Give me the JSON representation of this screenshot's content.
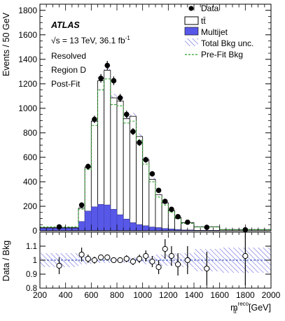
{
  "chart_data": [
    {
      "type": "bar",
      "panel": "main",
      "experiment": "ATLAS",
      "energy_text": "√s = 13 TeV, 36.1 fb",
      "energy_sup": "-1",
      "annotations": [
        "Resolved",
        "Region D",
        "Post-Fit"
      ],
      "ylabel": "Events / 50 GeV",
      "xlim": [
        200,
        2000
      ],
      "ylim": [
        0,
        1850
      ],
      "y_ticks": [
        0,
        200,
        400,
        600,
        800,
        1000,
        1200,
        1400,
        1600,
        1800
      ],
      "legend": {
        "placement": "top-right",
        "entries": [
          {
            "key": "data",
            "label": "Data",
            "style": "marker"
          },
          {
            "key": "ttbar",
            "label": "tt̄",
            "style": "white-box"
          },
          {
            "key": "multijet",
            "label": "Multijet",
            "style": "fill",
            "color": "#5858e8"
          },
          {
            "key": "unc",
            "label": "Total Bkg unc.",
            "style": "hatch"
          },
          {
            "key": "prefit",
            "label": "Pre-Fit Bkg",
            "style": "dashed-line",
            "color": "#2ca02c"
          }
        ]
      },
      "bin_edges": [
        200,
        500,
        550,
        600,
        650,
        700,
        750,
        800,
        850,
        900,
        950,
        1000,
        1050,
        1100,
        1150,
        1200,
        1250,
        1300,
        1400,
        1600,
        2000
      ],
      "series": [
        {
          "name": "Multijet",
          "values": [
            20,
            75,
            160,
            195,
            215,
            210,
            175,
            130,
            95,
            65,
            50,
            40,
            30,
            25,
            18,
            14,
            10,
            6,
            3,
            1
          ]
        },
        {
          "name": "tt̄",
          "values": [
            5,
            110,
            360,
            700,
            1010,
            1100,
            910,
            930,
            820,
            870,
            720,
            540,
            390,
            270,
            210,
            150,
            100,
            60,
            30,
            9
          ]
        },
        {
          "name": "Pre-Fit Bkg",
          "values": [
            32,
            175,
            500,
            860,
            1150,
            1240,
            1030,
            1020,
            880,
            895,
            740,
            545,
            400,
            275,
            210,
            150,
            100,
            60,
            31,
            9
          ]
        }
      ],
      "data_points": [
        {
          "x": 350,
          "y": 32
        },
        {
          "x": 525,
          "y": 210
        },
        {
          "x": 575,
          "y": 525
        },
        {
          "x": 625,
          "y": 910
        },
        {
          "x": 675,
          "y": 1245
        },
        {
          "x": 725,
          "y": 1350
        },
        {
          "x": 775,
          "y": 1225
        },
        {
          "x": 825,
          "y": 1085
        },
        {
          "x": 875,
          "y": 950
        },
        {
          "x": 925,
          "y": 810
        },
        {
          "x": 975,
          "y": 720
        },
        {
          "x": 1025,
          "y": 580
        },
        {
          "x": 1075,
          "y": 465
        },
        {
          "x": 1125,
          "y": 330
        },
        {
          "x": 1175,
          "y": 240
        },
        {
          "x": 1225,
          "y": 175
        },
        {
          "x": 1275,
          "y": 115
        },
        {
          "x": 1350,
          "y": 70
        },
        {
          "x": 1500,
          "y": 28
        },
        {
          "x": 1800,
          "y": 8
        }
      ]
    },
    {
      "type": "scatter",
      "panel": "ratio",
      "ylabel": "Data / Bkg",
      "xlabel": "m",
      "xlabel_sup": "reco",
      "xlabel_sub": "tt̄",
      "xlabel_unit": " [GeV]",
      "xlim": [
        200,
        2000
      ],
      "ylim": [
        0.8,
        1.2
      ],
      "y_ticks": [
        0.8,
        0.9,
        1,
        1.1
      ],
      "x_ticks": [
        200,
        400,
        600,
        800,
        1000,
        1200,
        1400,
        1600,
        1800,
        2000
      ],
      "reference_line": 1,
      "unc_band": [
        0.05,
        0.03,
        0.03,
        0.02,
        0.02,
        0.02,
        0.02,
        0.02,
        0.02,
        0.02,
        0.02,
        0.03,
        0.03,
        0.04,
        0.04,
        0.04,
        0.05,
        0.05,
        0.08,
        0.09
      ],
      "points": [
        {
          "x": 350,
          "y": 0.96,
          "err": 0.06
        },
        {
          "x": 525,
          "y": 1.04,
          "err": 0.05
        },
        {
          "x": 575,
          "y": 1.01,
          "err": 0.03
        },
        {
          "x": 625,
          "y": 1.0,
          "err": 0.025
        },
        {
          "x": 675,
          "y": 1.02,
          "err": 0.02
        },
        {
          "x": 725,
          "y": 1.02,
          "err": 0.02
        },
        {
          "x": 775,
          "y": 1.0,
          "err": 0.02
        },
        {
          "x": 825,
          "y": 1.0,
          "err": 0.02
        },
        {
          "x": 875,
          "y": 1.01,
          "err": 0.025
        },
        {
          "x": 925,
          "y": 0.99,
          "err": 0.025
        },
        {
          "x": 975,
          "y": 1.01,
          "err": 0.03
        },
        {
          "x": 1025,
          "y": 1.03,
          "err": 0.04
        },
        {
          "x": 1075,
          "y": 0.99,
          "err": 0.04
        },
        {
          "x": 1125,
          "y": 0.95,
          "err": 0.05
        },
        {
          "x": 1175,
          "y": 1.08,
          "err": 0.07
        },
        {
          "x": 1225,
          "y": 1.03,
          "err": 0.07
        },
        {
          "x": 1275,
          "y": 0.97,
          "err": 0.08
        },
        {
          "x": 1350,
          "y": 1.0,
          "err": 0.1
        },
        {
          "x": 1500,
          "y": 0.94,
          "err": 0.12
        },
        {
          "x": 1800,
          "y": 1.03,
          "err": 0.21
        }
      ]
    }
  ]
}
